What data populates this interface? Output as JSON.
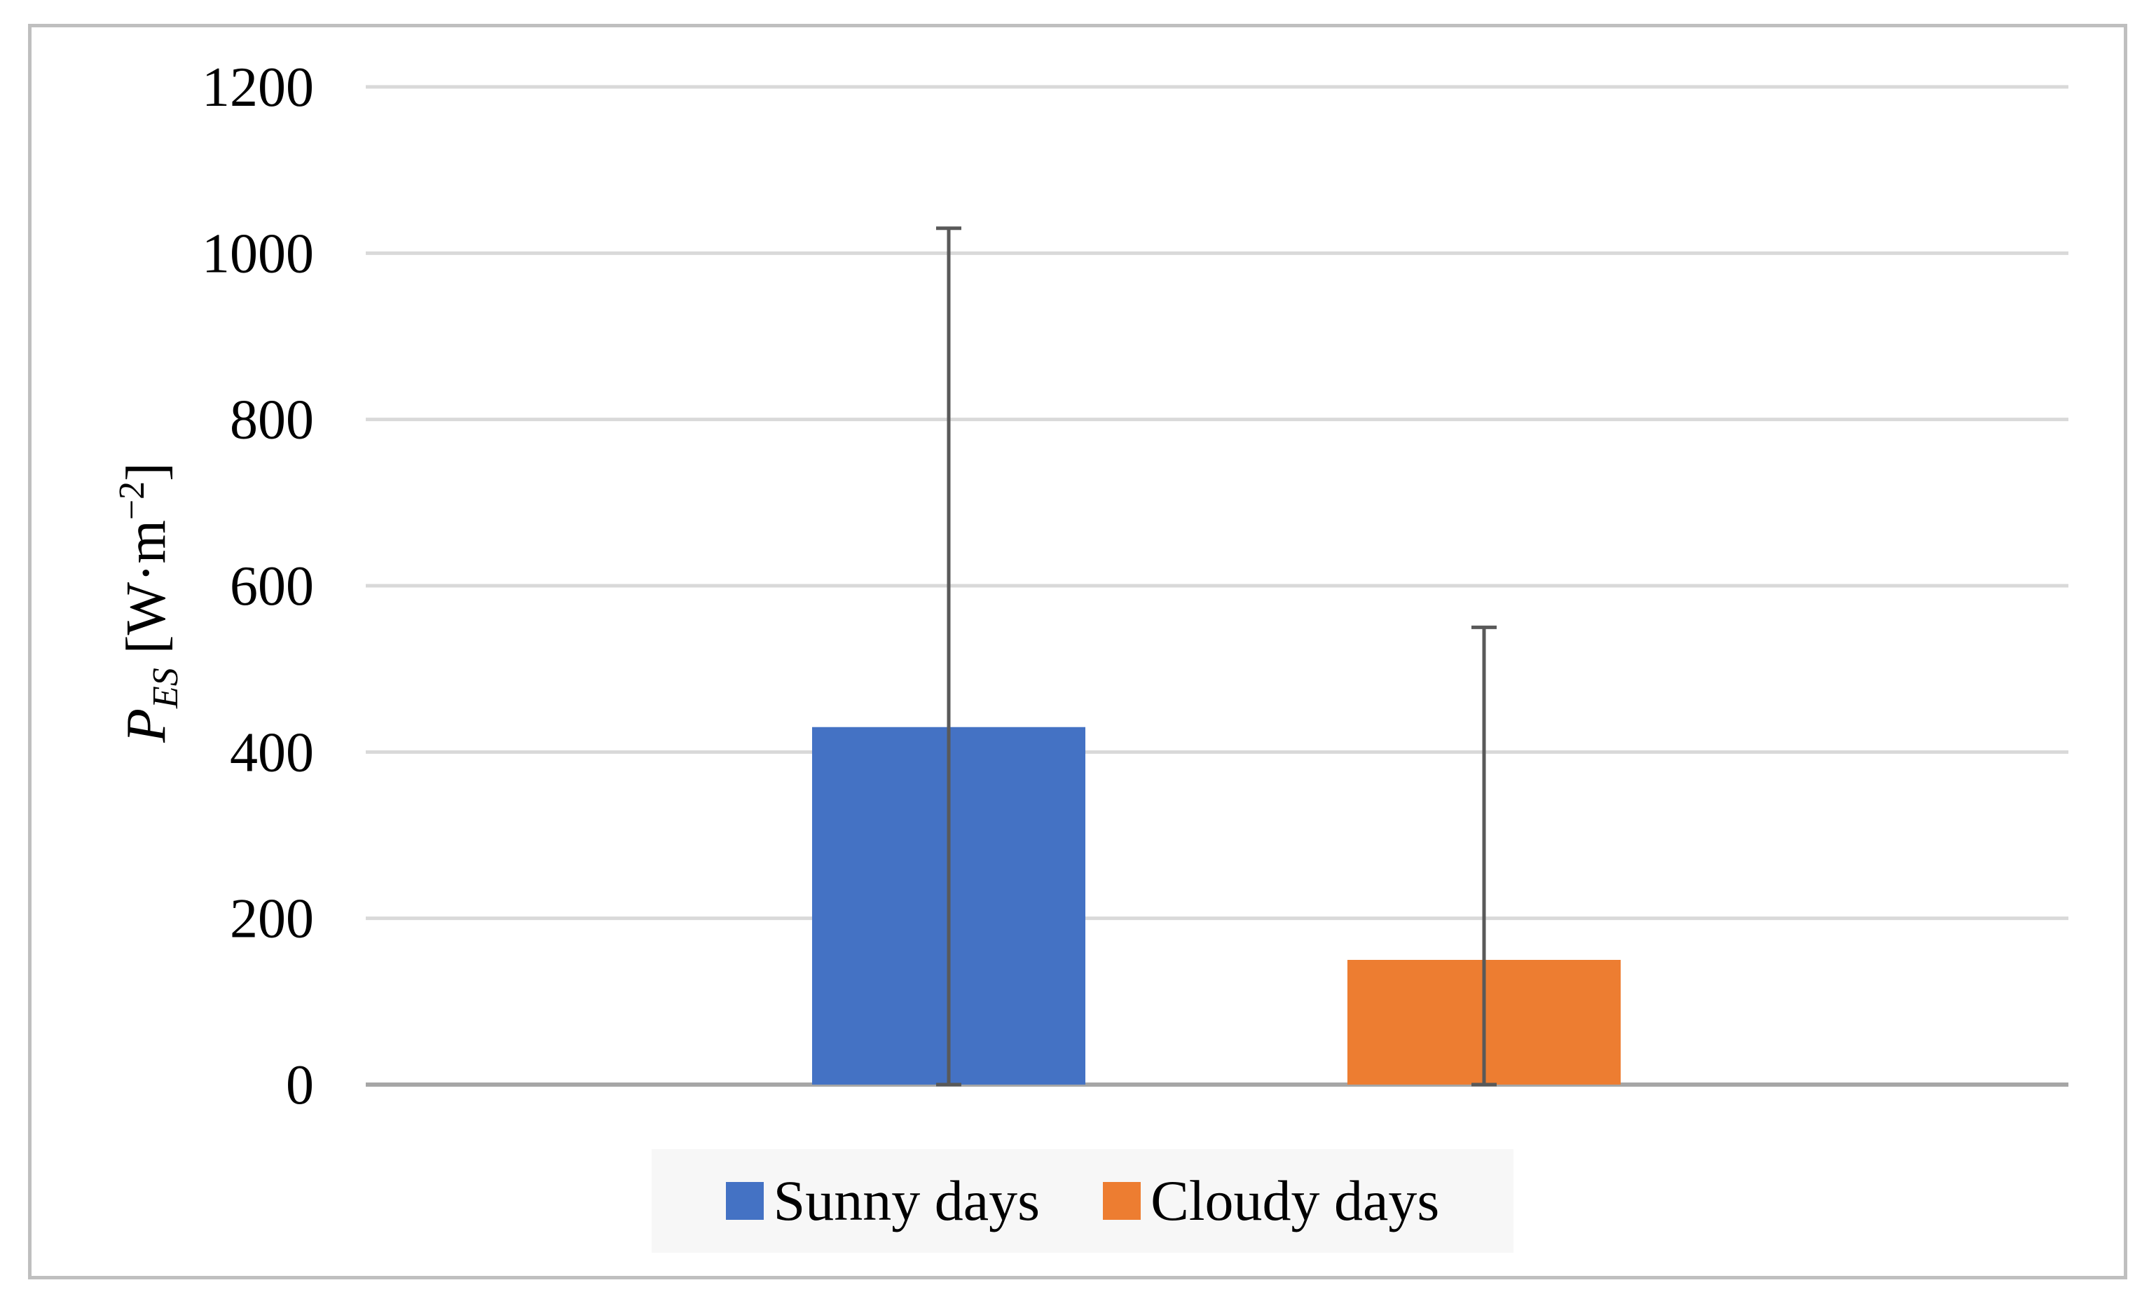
{
  "chart_data": {
    "type": "bar",
    "title": "",
    "ylabel": {
      "symbol": "P",
      "subscript": "ES",
      "unit_prefix": " [W·m",
      "unit_exponent": "−2",
      "unit_suffix": "]"
    },
    "ylim": [
      0,
      1200
    ],
    "yticks": [
      "0",
      "200",
      "400",
      "600",
      "800",
      "1000",
      "1200"
    ],
    "grid": true,
    "legend_position": "bottom",
    "series": [
      {
        "name": "Sunny days",
        "value": 430,
        "error_upper": 1030,
        "error_lower": 0,
        "color": "#4472c4"
      },
      {
        "name": "Cloudy days",
        "value": 150,
        "error_upper": 550,
        "error_lower": 0,
        "color": "#ed7d31"
      }
    ]
  }
}
